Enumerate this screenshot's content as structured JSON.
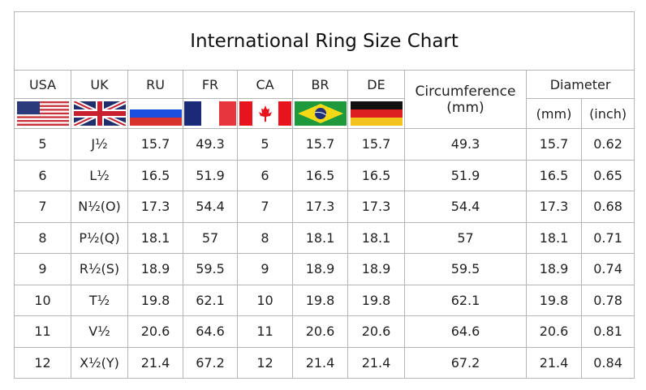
{
  "title": "International Ring Size Chart",
  "headers": {
    "usa": "USA",
    "uk": "UK",
    "ru": "RU",
    "fr": "FR",
    "ca": "CA",
    "br": "BR",
    "de": "DE",
    "circumference": "Circumference\n(mm)",
    "diameter": "Diameter",
    "mm": "(mm)",
    "inch": "(inch)"
  },
  "flags": [
    "us-flag",
    "uk-flag",
    "russia-flag",
    "france-flag",
    "canada-flag",
    "brazil-flag",
    "germany-flag"
  ],
  "rows": [
    [
      "5",
      "J½",
      "15.7",
      "49.3",
      "5",
      "15.7",
      "15.7",
      "49.3",
      "15.7",
      "0.62"
    ],
    [
      "6",
      "L½",
      "16.5",
      "51.9",
      "6",
      "16.5",
      "16.5",
      "51.9",
      "16.5",
      "0.65"
    ],
    [
      "7",
      "N½(O)",
      "17.3",
      "54.4",
      "7",
      "17.3",
      "17.3",
      "54.4",
      "17.3",
      "0.68"
    ],
    [
      "8",
      "P½(Q)",
      "18.1",
      "57",
      "8",
      "18.1",
      "18.1",
      "57",
      "18.1",
      "0.71"
    ],
    [
      "9",
      "R½(S)",
      "18.9",
      "59.5",
      "9",
      "18.9",
      "18.9",
      "59.5",
      "18.9",
      "0.74"
    ],
    [
      "10",
      "T½",
      "19.8",
      "62.1",
      "10",
      "19.8",
      "19.8",
      "62.1",
      "19.8",
      "0.78"
    ],
    [
      "11",
      "V½",
      "20.6",
      "64.6",
      "11",
      "20.6",
      "20.6",
      "64.6",
      "20.6",
      "0.81"
    ],
    [
      "12",
      "X½(Y)",
      "21.4",
      "67.2",
      "12",
      "21.4",
      "21.4",
      "67.2",
      "21.4",
      "0.84"
    ]
  ]
}
